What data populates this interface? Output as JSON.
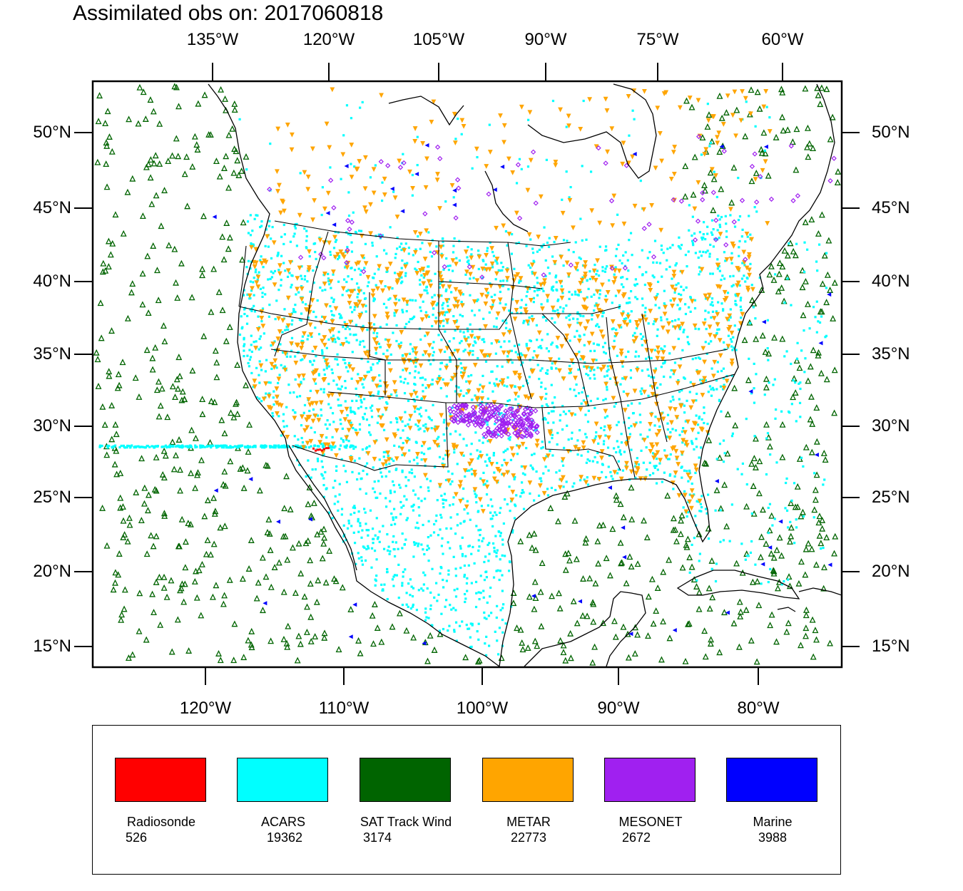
{
  "title": "Assimilated obs on: 2017060818",
  "axes": {
    "top_ticks": [
      "135°W",
      "120°W",
      "105°W",
      "90°W",
      "75°W",
      "60°W"
    ],
    "bottom_ticks": [
      "120°W",
      "110°W",
      "100°W",
      "90°W",
      "80°W"
    ],
    "left_ticks": [
      "50°N",
      "45°N",
      "40°N",
      "35°N",
      "30°N",
      "25°N",
      "20°N",
      "15°N"
    ],
    "right_ticks": [
      "50°N",
      "45°N",
      "40°N",
      "35°N",
      "30°N",
      "25°N",
      "20°N",
      "15°N"
    ]
  },
  "legend": [
    {
      "name": "Radiosonde",
      "count": "526",
      "color": "#ff0000"
    },
    {
      "name": "ACARS",
      "count": "19362",
      "color": "#00ffff"
    },
    {
      "name": "SAT Track Wind",
      "count": "3174",
      "color": "#006400"
    },
    {
      "name": "METAR",
      "count": "22773",
      "color": "#ffa500"
    },
    {
      "name": "MESONET",
      "count": "2672",
      "color": "#a020f0"
    },
    {
      "name": "Marine",
      "count": "3988",
      "color": "#0000ff"
    }
  ],
  "colors": {
    "coastline": "#000000",
    "acars": "#00ffff",
    "sat_track_wind": "#006400",
    "metar": "#ffa500",
    "mesonet": "#a020f0",
    "marine": "#0000ff",
    "radiosonde": "#ff0000"
  }
}
